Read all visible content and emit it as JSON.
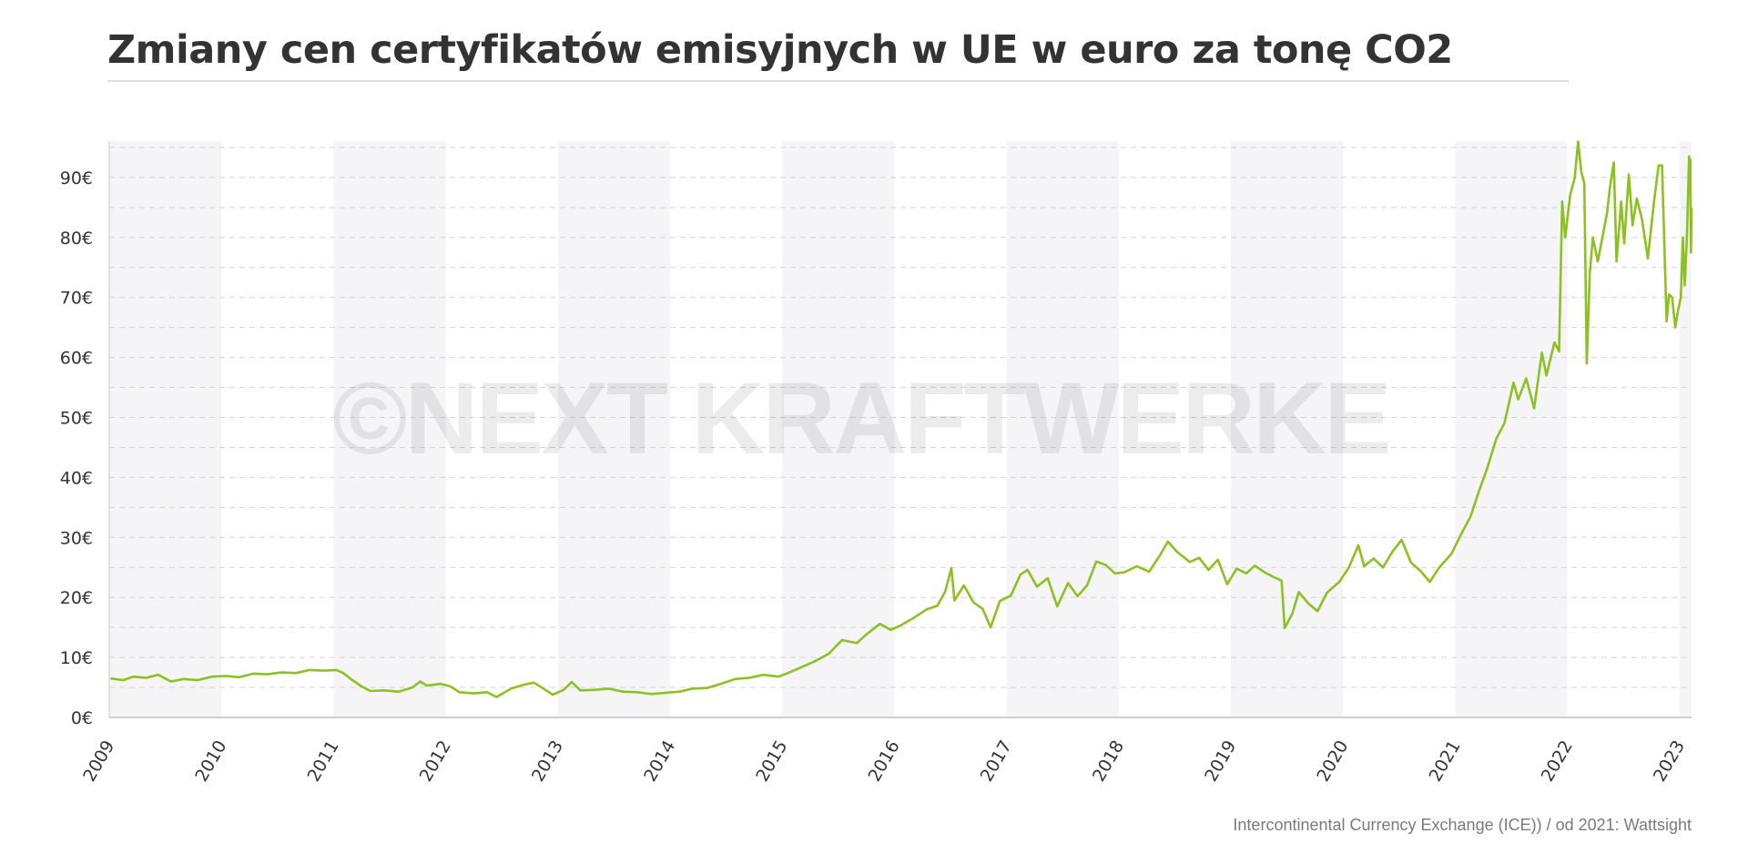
{
  "title": "Zmiany cen certyfikatów emisyjnych w UE w euro za tonę CO2",
  "source": "Intercontinental Currency Exchange (ICE)) / od 2021: Wattsight",
  "watermark": "©NEXT KRAFTWERKE",
  "colors": {
    "line": "#8dc021",
    "band": "#f5f5f8",
    "grid": "#d4d4d4",
    "text": "#333333"
  },
  "chart_data": {
    "type": "line",
    "title": "Zmiany cen certyfikatów emisyjnych w UE w euro za tonę CO2",
    "xlabel": "",
    "ylabel": "",
    "x_ticks": [
      "2009",
      "2010",
      "2011",
      "2012",
      "2013",
      "2014",
      "2015",
      "2016",
      "2017",
      "2018",
      "2019",
      "2020",
      "2021",
      "2022",
      "2023"
    ],
    "y_ticks": [
      "0€",
      "10€",
      "20€",
      "30€",
      "40€",
      "50€",
      "60€",
      "70€",
      "80€",
      "90€"
    ],
    "y_tick_values": [
      0,
      10,
      20,
      30,
      40,
      50,
      60,
      70,
      80,
      90
    ],
    "ylim": [
      0,
      96
    ],
    "xlim": [
      "2009-01-01",
      "2023-02-10"
    ],
    "grid": "horizontal dashed every 5€, alternating shaded year bands",
    "legend": "none",
    "series": [
      {
        "points": [
          [
            "2009-01-05",
            6.5
          ],
          [
            "2009-02-15",
            6.2
          ],
          [
            "2009-03-20",
            6.8
          ],
          [
            "2009-05-01",
            6.6
          ],
          [
            "2009-06-10",
            7.1
          ],
          [
            "2009-07-20",
            6.0
          ],
          [
            "2009-09-01",
            6.4
          ],
          [
            "2009-10-15",
            6.2
          ],
          [
            "2009-12-01",
            6.8
          ],
          [
            "2010-01-15",
            6.9
          ],
          [
            "2010-03-01",
            6.7
          ],
          [
            "2010-04-15",
            7.3
          ],
          [
            "2010-06-01",
            7.2
          ],
          [
            "2010-07-15",
            7.5
          ],
          [
            "2010-09-01",
            7.4
          ],
          [
            "2010-10-15",
            7.9
          ],
          [
            "2010-12-01",
            7.8
          ],
          [
            "2011-01-10",
            7.9
          ],
          [
            "2011-02-01",
            7.4
          ],
          [
            "2011-03-01",
            6.3
          ],
          [
            "2011-04-01",
            5.2
          ],
          [
            "2011-05-01",
            4.4
          ],
          [
            "2011-06-15",
            4.5
          ],
          [
            "2011-08-01",
            4.3
          ],
          [
            "2011-09-15",
            5.0
          ],
          [
            "2011-10-10",
            6.0
          ],
          [
            "2011-11-01",
            5.3
          ],
          [
            "2011-12-15",
            5.6
          ],
          [
            "2012-01-15",
            5.2
          ],
          [
            "2012-02-15",
            4.2
          ],
          [
            "2012-04-01",
            4.0
          ],
          [
            "2012-05-15",
            4.2
          ],
          [
            "2012-06-15",
            3.4
          ],
          [
            "2012-08-01",
            4.8
          ],
          [
            "2012-09-15",
            5.5
          ],
          [
            "2012-10-15",
            5.8
          ],
          [
            "2012-11-15",
            4.8
          ],
          [
            "2012-12-15",
            3.8
          ],
          [
            "2013-01-20",
            4.6
          ],
          [
            "2013-02-15",
            5.9
          ],
          [
            "2013-03-15",
            4.5
          ],
          [
            "2013-05-01",
            4.6
          ],
          [
            "2013-06-15",
            4.8
          ],
          [
            "2013-08-01",
            4.3
          ],
          [
            "2013-09-15",
            4.2
          ],
          [
            "2013-11-01",
            3.9
          ],
          [
            "2013-12-15",
            4.1
          ],
          [
            "2014-02-01",
            4.3
          ],
          [
            "2014-03-15",
            4.8
          ],
          [
            "2014-05-01",
            4.9
          ],
          [
            "2014-06-15",
            5.6
          ],
          [
            "2014-08-01",
            6.4
          ],
          [
            "2014-09-15",
            6.6
          ],
          [
            "2014-11-01",
            7.1
          ],
          [
            "2014-12-20",
            6.8
          ],
          [
            "2015-01-20",
            7.4
          ],
          [
            "2015-03-01",
            8.3
          ],
          [
            "2015-04-15",
            9.3
          ],
          [
            "2015-06-01",
            10.6
          ],
          [
            "2015-07-15",
            12.9
          ],
          [
            "2015-09-01",
            12.4
          ],
          [
            "2015-10-01",
            13.8
          ],
          [
            "2015-11-15",
            15.6
          ],
          [
            "2015-12-20",
            14.6
          ],
          [
            "2016-01-20",
            15.3
          ],
          [
            "2016-03-01",
            16.5
          ],
          [
            "2016-04-15",
            18.0
          ],
          [
            "2016-05-20",
            18.6
          ],
          [
            "2016-06-15",
            21.0
          ],
          [
            "2016-07-05",
            24.9
          ],
          [
            "2016-07-15",
            19.5
          ],
          [
            "2016-08-15",
            22.0
          ],
          [
            "2016-09-15",
            19.2
          ],
          [
            "2016-10-15",
            18.1
          ],
          [
            "2016-11-10",
            15.0
          ],
          [
            "2016-12-10",
            19.4
          ],
          [
            "2017-01-15",
            20.3
          ],
          [
            "2017-02-15",
            23.8
          ],
          [
            "2017-03-10",
            24.6
          ],
          [
            "2017-04-10",
            21.8
          ],
          [
            "2017-05-15",
            23.2
          ],
          [
            "2017-06-15",
            18.5
          ],
          [
            "2017-07-20",
            22.4
          ],
          [
            "2017-08-20",
            20.2
          ],
          [
            "2017-09-20",
            22.0
          ],
          [
            "2017-10-20",
            26.0
          ],
          [
            "2017-11-20",
            25.4
          ],
          [
            "2017-12-20",
            24.0
          ],
          [
            "2018-01-20",
            24.2
          ],
          [
            "2018-03-01",
            25.2
          ],
          [
            "2018-04-10",
            24.3
          ],
          [
            "2018-05-15",
            27.0
          ],
          [
            "2018-06-10",
            29.3
          ],
          [
            "2018-07-10",
            27.6
          ],
          [
            "2018-08-20",
            25.9
          ],
          [
            "2018-09-20",
            26.6
          ],
          [
            "2018-10-20",
            24.6
          ],
          [
            "2018-11-20",
            26.3
          ],
          [
            "2018-12-20",
            22.2
          ],
          [
            "2019-01-20",
            24.8
          ],
          [
            "2019-02-20",
            24.0
          ],
          [
            "2019-03-20",
            25.3
          ],
          [
            "2019-04-20",
            24.2
          ],
          [
            "2019-05-20",
            23.4
          ],
          [
            "2019-06-15",
            22.8
          ],
          [
            "2019-06-25",
            14.9
          ],
          [
            "2019-07-20",
            17.3
          ],
          [
            "2019-08-10",
            20.9
          ],
          [
            "2019-09-10",
            19.0
          ],
          [
            "2019-10-10",
            17.7
          ],
          [
            "2019-11-10",
            20.8
          ],
          [
            "2019-12-20",
            22.6
          ],
          [
            "2020-01-20",
            25.0
          ],
          [
            "2020-02-20",
            28.7
          ],
          [
            "2020-03-10",
            25.2
          ],
          [
            "2020-04-10",
            26.5
          ],
          [
            "2020-05-10",
            25.0
          ],
          [
            "2020-06-10",
            27.6
          ],
          [
            "2020-07-10",
            29.6
          ],
          [
            "2020-08-10",
            25.8
          ],
          [
            "2020-09-10",
            24.4
          ],
          [
            "2020-10-10",
            22.6
          ],
          [
            "2020-11-10",
            25.0
          ],
          [
            "2020-12-20",
            27.3
          ],
          [
            "2021-01-20",
            30.5
          ],
          [
            "2021-02-20",
            33.5
          ],
          [
            "2021-03-20",
            37.8
          ],
          [
            "2021-04-15",
            41.5
          ],
          [
            "2021-05-15",
            46.5
          ],
          [
            "2021-06-10",
            49.0
          ],
          [
            "2021-07-10",
            55.8
          ],
          [
            "2021-07-25",
            53.0
          ],
          [
            "2021-08-20",
            56.5
          ],
          [
            "2021-09-15",
            51.5
          ],
          [
            "2021-10-10",
            60.8
          ],
          [
            "2021-10-25",
            57.0
          ],
          [
            "2021-11-20",
            62.5
          ],
          [
            "2021-12-05",
            61.0
          ],
          [
            "2021-12-15",
            86.0
          ],
          [
            "2021-12-25",
            80.0
          ],
          [
            "2022-01-10",
            87.0
          ],
          [
            "2022-01-25",
            90.0
          ],
          [
            "2022-02-05",
            96.0
          ],
          [
            "2022-02-15",
            91.0
          ],
          [
            "2022-02-25",
            89.0
          ],
          [
            "2022-03-05",
            59.0
          ],
          [
            "2022-03-15",
            74.0
          ],
          [
            "2022-03-25",
            80.0
          ],
          [
            "2022-04-10",
            76.0
          ],
          [
            "2022-04-25",
            80.0
          ],
          [
            "2022-05-10",
            84.0
          ],
          [
            "2022-05-20",
            88.5
          ],
          [
            "2022-06-01",
            92.5
          ],
          [
            "2022-06-10",
            76.0
          ],
          [
            "2022-06-25",
            86.0
          ],
          [
            "2022-07-05",
            79.0
          ],
          [
            "2022-07-20",
            90.5
          ],
          [
            "2022-08-01",
            82.0
          ],
          [
            "2022-08-15",
            86.5
          ],
          [
            "2022-09-01",
            83.0
          ],
          [
            "2022-09-20",
            76.5
          ],
          [
            "2022-10-10",
            86.0
          ],
          [
            "2022-10-25",
            92.0
          ],
          [
            "2022-11-05",
            92.0
          ],
          [
            "2022-11-20",
            66.0
          ],
          [
            "2022-11-28",
            70.5
          ],
          [
            "2022-12-08",
            70.0
          ],
          [
            "2022-12-18",
            65.0
          ],
          [
            "2022-12-28",
            68.0
          ],
          [
            "2023-01-05",
            70.0
          ],
          [
            "2023-01-12",
            80.0
          ],
          [
            "2023-01-18",
            72.0
          ],
          [
            "2023-01-25",
            80.0
          ],
          [
            "2023-02-01",
            93.5
          ],
          [
            "2023-02-03",
            88.0
          ],
          [
            "2023-02-05",
            93.0
          ],
          [
            "2023-02-07",
            77.5
          ],
          [
            "2023-02-09",
            85.0
          ]
        ]
      }
    ]
  }
}
